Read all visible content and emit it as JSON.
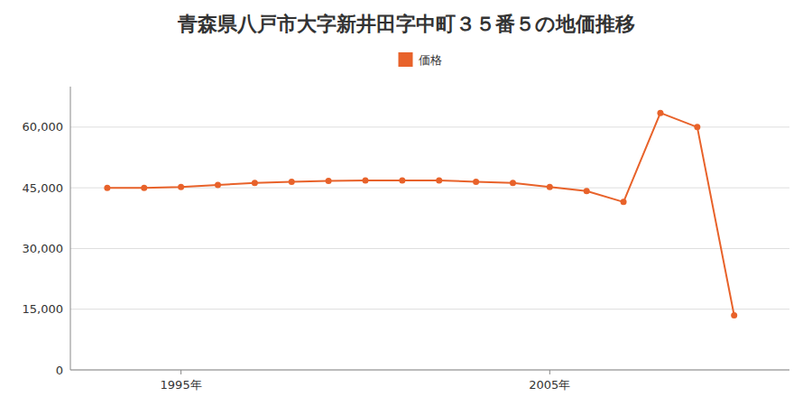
{
  "chart_data": {
    "type": "line",
    "title": "青森県八戸市大字新井田字中町３５番５の地価推移",
    "x": [
      1993,
      1994,
      1995,
      1996,
      1997,
      1998,
      1999,
      2000,
      2001,
      2002,
      2003,
      2004,
      2005,
      2006,
      2007,
      2008,
      2009,
      2010
    ],
    "series": [
      {
        "name": "価格",
        "color": "#E8622A",
        "marker": "circle",
        "line_style": "solid",
        "values": [
          45000,
          45000,
          45200,
          45700,
          46200,
          46500,
          46700,
          46800,
          46800,
          46800,
          46500,
          46200,
          45200,
          44200,
          41500,
          63500,
          60000,
          13500
        ]
      }
    ],
    "xlim": [
      1992.0,
      2011.5
    ],
    "xticks": [
      {
        "value": 1995,
        "label": "1995年"
      },
      {
        "value": 2005,
        "label": "2005年"
      }
    ],
    "ylim": [
      0,
      70000
    ],
    "yticks": [
      0,
      {
        "value": 15000,
        "label": "15,000"
      },
      {
        "value": 30000,
        "label": "30,000"
      },
      {
        "value": 45000,
        "label": "45,000"
      },
      {
        "value": 60000,
        "label": "60,000"
      }
    ],
    "grid": true,
    "legend": "top"
  }
}
